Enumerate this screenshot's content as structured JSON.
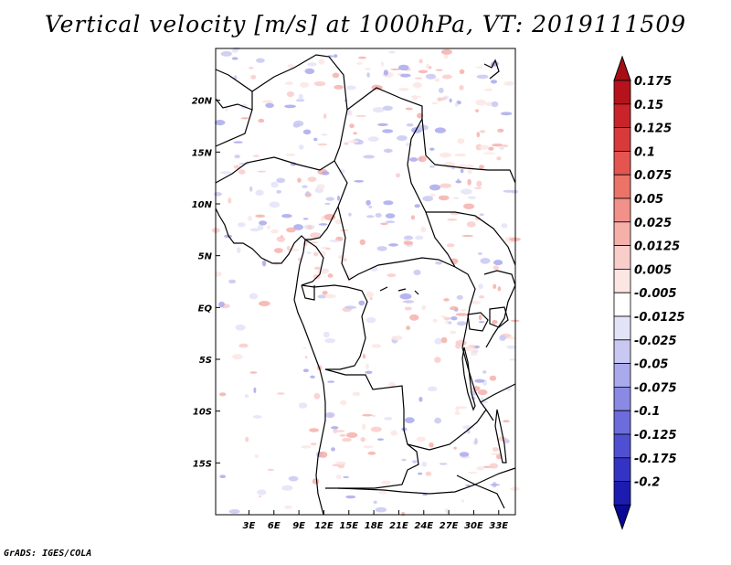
{
  "title": "Vertical velocity [m/s] at 1000hPa, VT: 2019111509",
  "footer": "GrADS: IGES/COLA",
  "map": {
    "lon_range": [
      -1,
      35
    ],
    "lat_range": [
      -20,
      25
    ],
    "lon_ticks": [
      {
        "value": 3,
        "label": "3E"
      },
      {
        "value": 6,
        "label": "6E"
      },
      {
        "value": 9,
        "label": "9E"
      },
      {
        "value": 12,
        "label": "12E"
      },
      {
        "value": 15,
        "label": "15E"
      },
      {
        "value": 18,
        "label": "18E"
      },
      {
        "value": 21,
        "label": "21E"
      },
      {
        "value": 24,
        "label": "24E"
      },
      {
        "value": 27,
        "label": "27E"
      },
      {
        "value": 30,
        "label": "30E"
      },
      {
        "value": 33,
        "label": "33E"
      }
    ],
    "lat_ticks": [
      {
        "value": 20,
        "label": "20N"
      },
      {
        "value": 15,
        "label": "15N"
      },
      {
        "value": 10,
        "label": "10N"
      },
      {
        "value": 5,
        "label": "5N"
      },
      {
        "value": 0,
        "label": "EQ"
      },
      {
        "value": -5,
        "label": "5S"
      },
      {
        "value": -10,
        "label": "10S"
      },
      {
        "value": -15,
        "label": "15S"
      }
    ]
  },
  "colorbar": {
    "levels": [
      {
        "label": "0.175",
        "color": "#b5121b"
      },
      {
        "label": "0.15",
        "color": "#c8242a"
      },
      {
        "label": "0.125",
        "color": "#d8393a"
      },
      {
        "label": "0.1",
        "color": "#e4554f"
      },
      {
        "label": "0.075",
        "color": "#ec7367"
      },
      {
        "label": "0.05",
        "color": "#f2908a"
      },
      {
        "label": "0.025",
        "color": "#f6b0aa"
      },
      {
        "label": "0.0125",
        "color": "#f9cdca"
      },
      {
        "label": "0.005",
        "color": "#fce6e4"
      },
      {
        "label": "-0.005",
        "color": "#ffffff"
      },
      {
        "label": "-0.0125",
        "color": "#e3e3f8"
      },
      {
        "label": "-0.025",
        "color": "#c8c8f2"
      },
      {
        "label": "-0.05",
        "color": "#a9a9ec"
      },
      {
        "label": "-0.075",
        "color": "#8a8ae4"
      },
      {
        "label": "-0.1",
        "color": "#6c6cdc"
      },
      {
        "label": "-0.125",
        "color": "#4f4fd2"
      },
      {
        "label": "-0.175",
        "color": "#3434c4"
      },
      {
        "label": "-0.2",
        "color": "#1c1cb0"
      }
    ],
    "top_color": "#a50f15",
    "bottom_color": "#0a0a96"
  }
}
